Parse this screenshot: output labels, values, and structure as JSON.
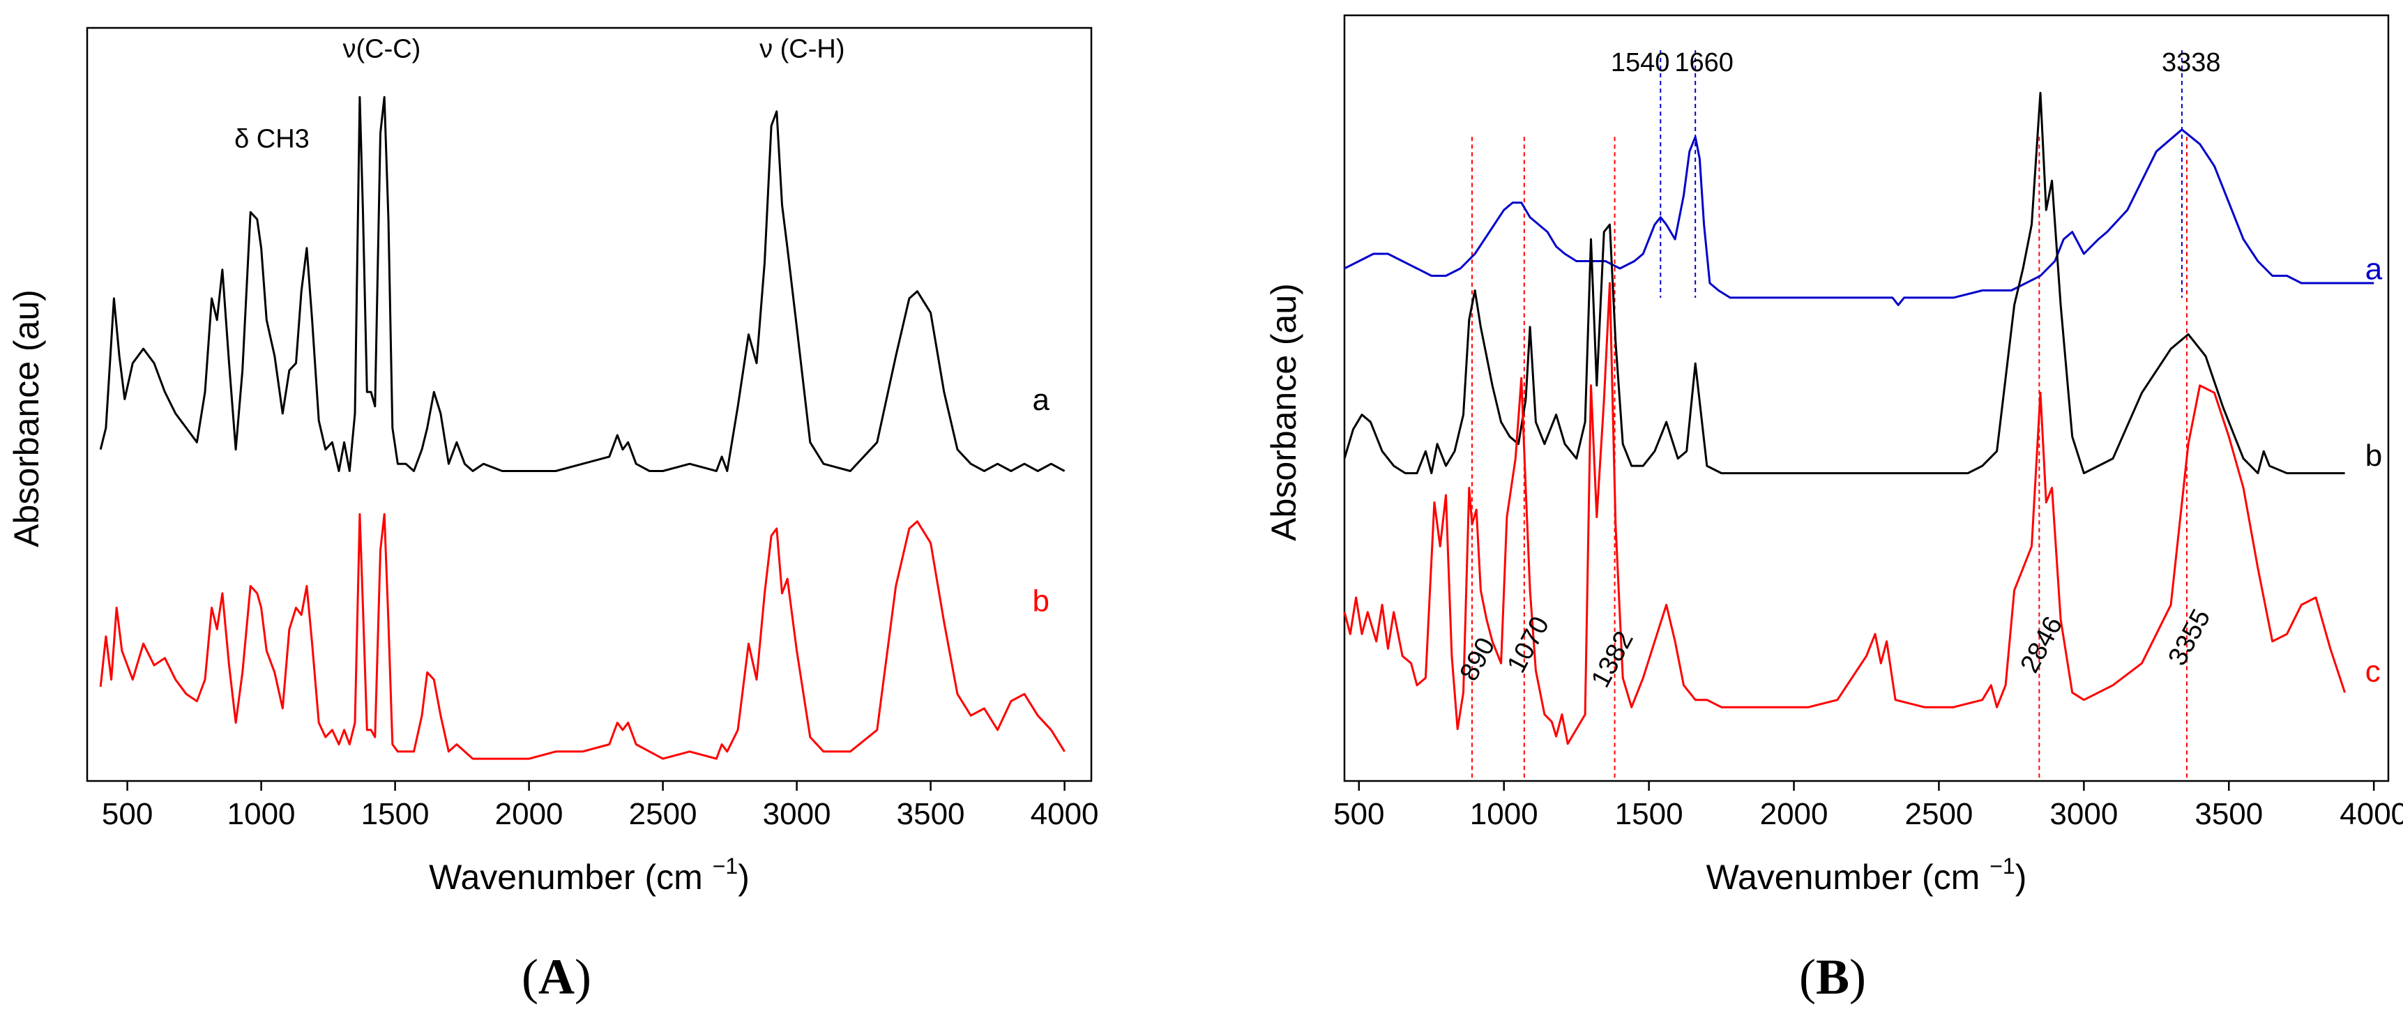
{
  "figure": {
    "panel_A_label": "A",
    "panel_B_label": "B"
  },
  "colors": {
    "a_black": "#000000",
    "b_red": "#ff0000",
    "blue": "#0000cc",
    "red": "#ff0000",
    "black": "#000000"
  },
  "chart_data": [
    {
      "id": "A",
      "type": "line",
      "title": "",
      "xlabel": "Wavenumber (cm",
      "xlabel_sup": "−1",
      "xlabel_close": ")",
      "ylabel": "Absorbance (au)",
      "xlim": [
        350,
        4100
      ],
      "xticks": [
        500,
        1000,
        1500,
        2000,
        2500,
        3000,
        3500,
        4000
      ],
      "ylim": [
        0,
        1
      ],
      "annotations": [
        {
          "text": "δ CH3",
          "x": 1040,
          "y": 0.86
        },
        {
          "text": "ν(C-C)",
          "x": 1450,
          "y": 0.985
        },
        {
          "text": "ν (C-H)",
          "x": 3020,
          "y": 0.985
        }
      ],
      "series": [
        {
          "name": "a",
          "label": "a",
          "color": "#000000",
          "label_x": 3880,
          "label_y": 0.495,
          "x": [
            400,
            420,
            450,
            470,
            490,
            520,
            560,
            600,
            640,
            680,
            720,
            760,
            790,
            815,
            835,
            855,
            880,
            905,
            930,
            960,
            985,
            1000,
            1020,
            1050,
            1080,
            1105,
            1130,
            1150,
            1170,
            1190,
            1215,
            1240,
            1265,
            1290,
            1310,
            1330,
            1350,
            1368,
            1380,
            1395,
            1410,
            1425,
            1445,
            1460,
            1475,
            1490,
            1510,
            1540,
            1570,
            1600,
            1620,
            1645,
            1670,
            1700,
            1730,
            1760,
            1790,
            1830,
            1900,
            2000,
            2100,
            2200,
            2300,
            2330,
            2350,
            2370,
            2400,
            2450,
            2500,
            2600,
            2700,
            2720,
            2740,
            2780,
            2820,
            2850,
            2880,
            2905,
            2925,
            2945,
            2965,
            3000,
            3050,
            3100,
            3200,
            3300,
            3370,
            3420,
            3450,
            3500,
            3550,
            3600,
            3650,
            3700,
            3750,
            3800,
            3850,
            3900,
            3950,
            4000
          ],
          "y": [
            0.44,
            0.47,
            0.65,
            0.57,
            0.51,
            0.56,
            0.58,
            0.56,
            0.52,
            0.49,
            0.47,
            0.45,
            0.52,
            0.65,
            0.62,
            0.69,
            0.56,
            0.44,
            0.55,
            0.77,
            0.76,
            0.72,
            0.62,
            0.57,
            0.49,
            0.55,
            0.56,
            0.66,
            0.72,
            0.62,
            0.48,
            0.44,
            0.45,
            0.41,
            0.45,
            0.41,
            0.49,
            0.93,
            0.77,
            0.52,
            0.52,
            0.5,
            0.88,
            0.93,
            0.76,
            0.47,
            0.42,
            0.42,
            0.41,
            0.44,
            0.47,
            0.52,
            0.49,
            0.42,
            0.45,
            0.42,
            0.41,
            0.42,
            0.41,
            0.41,
            0.41,
            0.42,
            0.43,
            0.46,
            0.44,
            0.45,
            0.42,
            0.41,
            0.41,
            0.42,
            0.41,
            0.43,
            0.41,
            0.5,
            0.6,
            0.56,
            0.7,
            0.89,
            0.91,
            0.78,
            0.72,
            0.61,
            0.45,
            0.42,
            0.41,
            0.45,
            0.57,
            0.65,
            0.66,
            0.63,
            0.52,
            0.44,
            0.42,
            0.41,
            0.42,
            0.41,
            0.42,
            0.41,
            0.42,
            0.41
          ]
        },
        {
          "name": "b",
          "label": "b",
          "color": "#ff0000",
          "label_x": 3880,
          "label_y": 0.215,
          "x": [
            400,
            420,
            440,
            460,
            480,
            520,
            560,
            600,
            640,
            680,
            720,
            760,
            790,
            815,
            835,
            855,
            880,
            905,
            930,
            960,
            985,
            1000,
            1020,
            1050,
            1080,
            1105,
            1130,
            1150,
            1170,
            1190,
            1215,
            1240,
            1265,
            1290,
            1310,
            1330,
            1350,
            1368,
            1380,
            1395,
            1410,
            1425,
            1445,
            1460,
            1475,
            1490,
            1510,
            1540,
            1570,
            1600,
            1620,
            1645,
            1670,
            1700,
            1730,
            1760,
            1790,
            1830,
            1900,
            2000,
            2100,
            2200,
            2300,
            2330,
            2350,
            2370,
            2400,
            2450,
            2500,
            2600,
            2700,
            2720,
            2740,
            2780,
            2820,
            2850,
            2880,
            2905,
            2925,
            2945,
            2965,
            3000,
            3050,
            3100,
            3200,
            3300,
            3370,
            3420,
            3450,
            3500,
            3550,
            3600,
            3650,
            3700,
            3750,
            3800,
            3850,
            3900,
            3950,
            4000
          ],
          "y": [
            0.11,
            0.18,
            0.12,
            0.22,
            0.16,
            0.12,
            0.17,
            0.14,
            0.15,
            0.12,
            0.1,
            0.09,
            0.12,
            0.22,
            0.19,
            0.24,
            0.14,
            0.06,
            0.13,
            0.25,
            0.24,
            0.22,
            0.16,
            0.13,
            0.08,
            0.19,
            0.22,
            0.21,
            0.25,
            0.17,
            0.06,
            0.04,
            0.05,
            0.03,
            0.05,
            0.03,
            0.06,
            0.35,
            0.22,
            0.05,
            0.05,
            0.04,
            0.3,
            0.35,
            0.2,
            0.03,
            0.02,
            0.02,
            0.02,
            0.07,
            0.13,
            0.12,
            0.07,
            0.02,
            0.03,
            0.02,
            0.01,
            0.01,
            0.01,
            0.01,
            0.02,
            0.02,
            0.03,
            0.06,
            0.05,
            0.06,
            0.03,
            0.02,
            0.01,
            0.02,
            0.01,
            0.03,
            0.02,
            0.05,
            0.17,
            0.12,
            0.24,
            0.32,
            0.33,
            0.24,
            0.26,
            0.16,
            0.04,
            0.02,
            0.02,
            0.05,
            0.25,
            0.33,
            0.34,
            0.31,
            0.2,
            0.1,
            0.07,
            0.08,
            0.05,
            0.09,
            0.1,
            0.07,
            0.05,
            0.02
          ]
        }
      ]
    },
    {
      "id": "B",
      "type": "line",
      "title": "",
      "xlabel": "Wavenumber (cm",
      "xlabel_sup": "−1",
      "xlabel_close": ")",
      "ylabel": "Absorbance (au)",
      "xlim": [
        450,
        4050
      ],
      "xticks": [
        500,
        1000,
        1500,
        2000,
        2500,
        3000,
        3500,
        4000
      ],
      "ylim": [
        0,
        1
      ],
      "top_labels": [
        {
          "text": "1540",
          "x": 1470
        },
        {
          "text": "1660",
          "x": 1690
        },
        {
          "text": "3338",
          "x": 3370
        }
      ],
      "blue_vlines": [
        1540,
        1660,
        3338
      ],
      "red_vlines": [
        890,
        1070,
        1382,
        2846,
        3355
      ],
      "rotated_labels": [
        {
          "text": "890",
          "x": 935,
          "y": 0.14
        },
        {
          "text": "1070",
          "x": 1110,
          "y": 0.16
        },
        {
          "text": "1382",
          "x": 1400,
          "y": 0.14
        },
        {
          "text": "2846",
          "x": 2880,
          "y": 0.16
        },
        {
          "text": "3355",
          "x": 3390,
          "y": 0.17
        }
      ],
      "series": [
        {
          "name": "a",
          "label": "a",
          "color": "#0000cc",
          "label_x": 3970,
          "label_y": 0.665,
          "x": [
            450,
            500,
            550,
            600,
            650,
            700,
            750,
            800,
            850,
            900,
            950,
            1000,
            1030,
            1060,
            1090,
            1120,
            1150,
            1180,
            1210,
            1250,
            1300,
            1350,
            1400,
            1450,
            1480,
            1500,
            1520,
            1540,
            1560,
            1590,
            1620,
            1640,
            1660,
            1675,
            1690,
            1710,
            1740,
            1780,
            1850,
            1950,
            2050,
            2150,
            2250,
            2340,
            2360,
            2380,
            2450,
            2550,
            2650,
            2750,
            2850,
            2900,
            2930,
            2960,
            3000,
            3050,
            3080,
            3150,
            3250,
            3338,
            3400,
            3450,
            3500,
            3550,
            3600,
            3650,
            3700,
            3750,
            3800,
            3850,
            3900,
            3950,
            4000
          ],
          "y": [
            0.68,
            0.69,
            0.7,
            0.7,
            0.69,
            0.68,
            0.67,
            0.67,
            0.68,
            0.7,
            0.73,
            0.76,
            0.77,
            0.77,
            0.75,
            0.74,
            0.73,
            0.71,
            0.7,
            0.69,
            0.69,
            0.69,
            0.68,
            0.69,
            0.7,
            0.72,
            0.74,
            0.75,
            0.74,
            0.72,
            0.78,
            0.84,
            0.86,
            0.83,
            0.74,
            0.66,
            0.65,
            0.64,
            0.64,
            0.64,
            0.64,
            0.64,
            0.64,
            0.64,
            0.63,
            0.64,
            0.64,
            0.64,
            0.65,
            0.65,
            0.67,
            0.69,
            0.72,
            0.73,
            0.7,
            0.72,
            0.73,
            0.76,
            0.84,
            0.87,
            0.85,
            0.82,
            0.77,
            0.72,
            0.69,
            0.67,
            0.67,
            0.66,
            0.66,
            0.66,
            0.66,
            0.66,
            0.66
          ]
        },
        {
          "name": "b",
          "label": "b",
          "color": "#000000",
          "label_x": 3970,
          "label_y": 0.41,
          "x": [
            450,
            480,
            510,
            540,
            580,
            620,
            660,
            700,
            730,
            750,
            770,
            800,
            830,
            860,
            880,
            900,
            920,
            940,
            960,
            990,
            1020,
            1050,
            1075,
            1090,
            1110,
            1140,
            1180,
            1210,
            1250,
            1280,
            1300,
            1320,
            1345,
            1365,
            1385,
            1410,
            1440,
            1480,
            1520,
            1560,
            1600,
            1630,
            1660,
            1680,
            1700,
            1750,
            1850,
            1950,
            2050,
            2200,
            2350,
            2500,
            2600,
            2650,
            2700,
            2730,
            2760,
            2790,
            2820,
            2850,
            2870,
            2890,
            2920,
            2960,
            3000,
            3100,
            3200,
            3300,
            3360,
            3420,
            3480,
            3550,
            3600,
            3620,
            3640,
            3700,
            3800,
            3900
          ],
          "y": [
            0.42,
            0.46,
            0.48,
            0.47,
            0.43,
            0.41,
            0.4,
            0.4,
            0.43,
            0.4,
            0.44,
            0.41,
            0.43,
            0.48,
            0.61,
            0.65,
            0.6,
            0.56,
            0.52,
            0.47,
            0.45,
            0.44,
            0.5,
            0.6,
            0.47,
            0.44,
            0.48,
            0.44,
            0.42,
            0.47,
            0.72,
            0.52,
            0.73,
            0.74,
            0.58,
            0.44,
            0.41,
            0.41,
            0.43,
            0.47,
            0.42,
            0.43,
            0.55,
            0.48,
            0.41,
            0.4,
            0.4,
            0.4,
            0.4,
            0.4,
            0.4,
            0.4,
            0.4,
            0.41,
            0.43,
            0.53,
            0.63,
            0.68,
            0.74,
            0.92,
            0.76,
            0.8,
            0.63,
            0.45,
            0.4,
            0.42,
            0.51,
            0.57,
            0.59,
            0.56,
            0.49,
            0.42,
            0.4,
            0.43,
            0.41,
            0.4,
            0.4,
            0.4
          ]
        },
        {
          "name": "c",
          "label": "c",
          "color": "#ff0000",
          "label_x": 3970,
          "label_y": 0.115,
          "x": [
            450,
            470,
            490,
            510,
            530,
            560,
            580,
            600,
            620,
            650,
            680,
            700,
            730,
            760,
            780,
            800,
            820,
            840,
            860,
            880,
            890,
            905,
            920,
            940,
            960,
            990,
            1010,
            1040,
            1060,
            1075,
            1090,
            1110,
            1140,
            1165,
            1180,
            1200,
            1220,
            1250,
            1280,
            1300,
            1320,
            1345,
            1365,
            1385,
            1410,
            1440,
            1480,
            1520,
            1560,
            1590,
            1620,
            1660,
            1700,
            1750,
            1850,
            1950,
            2050,
            2150,
            2200,
            2250,
            2280,
            2300,
            2320,
            2350,
            2450,
            2550,
            2650,
            2680,
            2700,
            2730,
            2760,
            2790,
            2820,
            2850,
            2870,
            2890,
            2920,
            2960,
            3000,
            3100,
            3200,
            3300,
            3360,
            3400,
            3450,
            3500,
            3550,
            3600,
            3650,
            3700,
            3750,
            3800,
            3850,
            3900
          ],
          "y": [
            0.21,
            0.18,
            0.23,
            0.18,
            0.21,
            0.17,
            0.22,
            0.16,
            0.21,
            0.15,
            0.14,
            0.11,
            0.12,
            0.36,
            0.3,
            0.37,
            0.15,
            0.05,
            0.1,
            0.38,
            0.33,
            0.35,
            0.24,
            0.2,
            0.17,
            0.14,
            0.34,
            0.42,
            0.53,
            0.38,
            0.24,
            0.13,
            0.07,
            0.06,
            0.04,
            0.07,
            0.03,
            0.05,
            0.07,
            0.52,
            0.34,
            0.5,
            0.66,
            0.33,
            0.12,
            0.08,
            0.12,
            0.17,
            0.22,
            0.17,
            0.11,
            0.09,
            0.09,
            0.08,
            0.08,
            0.08,
            0.08,
            0.09,
            0.12,
            0.15,
            0.18,
            0.14,
            0.17,
            0.09,
            0.08,
            0.08,
            0.09,
            0.11,
            0.08,
            0.11,
            0.24,
            0.27,
            0.3,
            0.51,
            0.36,
            0.38,
            0.2,
            0.1,
            0.09,
            0.11,
            0.14,
            0.22,
            0.44,
            0.52,
            0.51,
            0.45,
            0.38,
            0.27,
            0.17,
            0.18,
            0.22,
            0.23,
            0.16,
            0.1
          ]
        }
      ]
    }
  ]
}
